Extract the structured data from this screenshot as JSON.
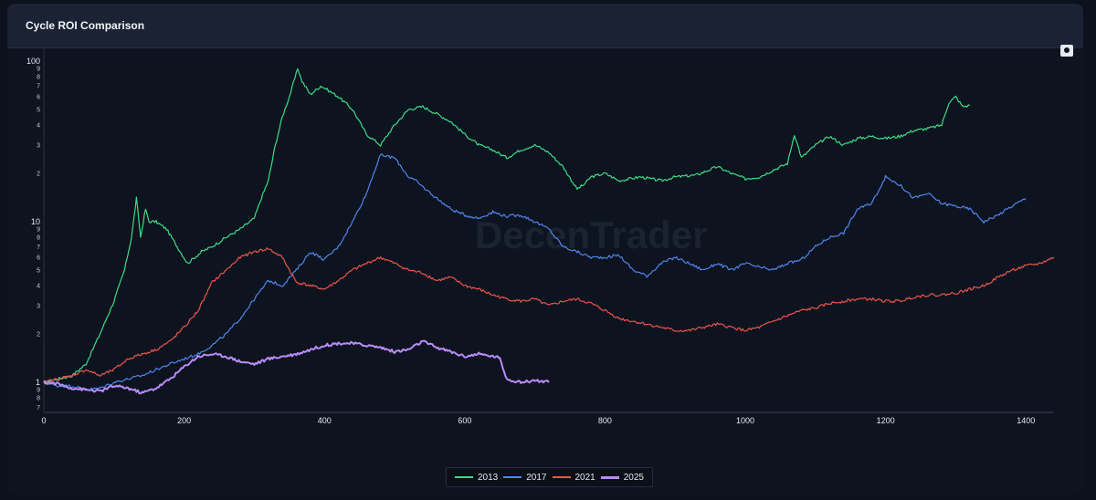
{
  "panel": {
    "title": "Cycle ROI Comparison"
  },
  "watermark": "DecenTrader",
  "toolbar": {
    "camera_icon": "camera-icon"
  },
  "chart_data": {
    "type": "line",
    "title": "Cycle ROI Comparison",
    "xlabel": "",
    "ylabel": "",
    "y_scale": "log",
    "xlim": [
      0,
      1440
    ],
    "ylim": [
      0.65,
      120
    ],
    "x_ticks": [
      0,
      200,
      400,
      600,
      800,
      1000,
      1200,
      1400
    ],
    "x_tick_labels": [
      "0",
      "200",
      "400",
      "600",
      "800",
      "1000",
      "1200",
      "1400"
    ],
    "y_major_ticks": [
      {
        "value": 1,
        "label": "1"
      },
      {
        "value": 10,
        "label": "10"
      },
      {
        "value": 100,
        "label": "100"
      }
    ],
    "y_minor_ticks": [
      {
        "value": 0.7,
        "label": "7"
      },
      {
        "value": 0.8,
        "label": "8"
      },
      {
        "value": 0.9,
        "label": "9"
      },
      {
        "value": 2,
        "label": "2"
      },
      {
        "value": 3,
        "label": "3"
      },
      {
        "value": 4,
        "label": "4"
      },
      {
        "value": 5,
        "label": "5"
      },
      {
        "value": 6,
        "label": "6"
      },
      {
        "value": 7,
        "label": "7"
      },
      {
        "value": 8,
        "label": "8"
      },
      {
        "value": 9,
        "label": "9"
      },
      {
        "value": 20,
        "label": "2"
      },
      {
        "value": 30,
        "label": "3"
      },
      {
        "value": 40,
        "label": "4"
      },
      {
        "value": 50,
        "label": "5"
      },
      {
        "value": 60,
        "label": "6"
      },
      {
        "value": 70,
        "label": "7"
      },
      {
        "value": 80,
        "label": "8"
      },
      {
        "value": 90,
        "label": "9"
      }
    ],
    "grid": false,
    "legend": "bottom-center",
    "series": [
      {
        "name": "2013",
        "color": "#3ddc84",
        "x": [
          0,
          20,
          40,
          60,
          80,
          100,
          115,
          125,
          132,
          138,
          145,
          150,
          160,
          175,
          190,
          205,
          215,
          225,
          240,
          260,
          280,
          300,
          310,
          320,
          330,
          340,
          350,
          362,
          368,
          380,
          395,
          400,
          420,
          440,
          460,
          480,
          500,
          520,
          540,
          560,
          580,
          600,
          620,
          640,
          660,
          680,
          700,
          720,
          740,
          760,
          770,
          780,
          800,
          820,
          850,
          880,
          900,
          930,
          960,
          980,
          1000,
          1020,
          1040,
          1060,
          1070,
          1080,
          1100,
          1120,
          1140,
          1160,
          1180,
          1200,
          1220,
          1240,
          1260,
          1280,
          1290,
          1300,
          1310,
          1320
        ],
        "y": [
          1.0,
          1.05,
          1.1,
          1.3,
          2.0,
          3.2,
          5.0,
          8.0,
          14.0,
          8.0,
          12.0,
          10.0,
          10.0,
          9.0,
          7.0,
          5.5,
          6.0,
          6.5,
          7.0,
          8.0,
          9.0,
          10.5,
          14.0,
          18.0,
          30.0,
          45.0,
          60.0,
          90.0,
          75.0,
          62.0,
          70.0,
          68.0,
          60.0,
          50.0,
          35.0,
          30.0,
          40.0,
          50.0,
          52.0,
          47.0,
          42.0,
          35.0,
          30.0,
          28.0,
          25.0,
          28.0,
          30.0,
          27.0,
          22.0,
          16.0,
          17.0,
          19.0,
          20.0,
          18.0,
          19.0,
          18.0,
          19.0,
          19.5,
          22.0,
          20.0,
          18.5,
          19.0,
          21.0,
          23.0,
          35.0,
          25.0,
          30.0,
          34.0,
          30.0,
          33.0,
          34.0,
          33.0,
          34.0,
          37.0,
          38.0,
          40.0,
          55.0,
          60.0,
          52.0,
          53.0
        ]
      },
      {
        "name": "2017",
        "color": "#4f86e8",
        "x": [
          0,
          20,
          40,
          60,
          80,
          100,
          120,
          140,
          160,
          180,
          200,
          220,
          240,
          260,
          280,
          300,
          320,
          340,
          360,
          380,
          400,
          420,
          440,
          460,
          470,
          480,
          500,
          520,
          530,
          540,
          560,
          580,
          600,
          620,
          640,
          660,
          680,
          700,
          720,
          740,
          760,
          780,
          800,
          820,
          840,
          860,
          880,
          900,
          920,
          940,
          960,
          980,
          1000,
          1020,
          1040,
          1060,
          1080,
          1100,
          1120,
          1140,
          1160,
          1180,
          1200,
          1220,
          1240,
          1260,
          1280,
          1300,
          1320,
          1330,
          1340,
          1360,
          1380,
          1400
        ],
        "y": [
          1.0,
          0.95,
          0.95,
          0.9,
          0.92,
          1.0,
          1.05,
          1.1,
          1.2,
          1.3,
          1.4,
          1.5,
          1.7,
          2.0,
          2.5,
          3.3,
          4.3,
          4.0,
          5.0,
          6.5,
          5.8,
          7.0,
          10.0,
          15.0,
          20.0,
          26.0,
          25.0,
          19.0,
          18.0,
          16.5,
          14.0,
          12.0,
          11.0,
          10.5,
          11.5,
          10.8,
          11.0,
          10.0,
          9.0,
          7.0,
          6.5,
          6.0,
          6.0,
          6.2,
          5.0,
          4.6,
          5.5,
          6.0,
          5.5,
          5.0,
          5.5,
          5.0,
          5.5,
          5.2,
          5.0,
          5.5,
          5.8,
          7.0,
          8.0,
          8.5,
          12.0,
          13.0,
          19.0,
          17.0,
          14.0,
          15.0,
          13.0,
          12.5,
          12.0,
          11.0,
          10.0,
          11.0,
          12.5,
          14.0
        ]
      },
      {
        "name": "2021",
        "color": "#e8564a",
        "x": [
          0,
          20,
          40,
          60,
          80,
          100,
          120,
          140,
          160,
          180,
          200,
          220,
          240,
          260,
          280,
          300,
          320,
          340,
          360,
          380,
          400,
          420,
          440,
          460,
          480,
          500,
          520,
          540,
          560,
          580,
          600,
          620,
          640,
          660,
          680,
          700,
          720,
          740,
          760,
          780,
          800,
          820,
          840,
          860,
          880,
          900,
          920,
          940,
          960,
          980,
          1000,
          1020,
          1040,
          1060,
          1080,
          1100,
          1120,
          1140,
          1160,
          1180,
          1200,
          1220,
          1240,
          1260,
          1280,
          1300,
          1320,
          1340,
          1360,
          1380,
          1400,
          1420,
          1440
        ],
        "y": [
          1.0,
          1.05,
          1.1,
          1.2,
          1.1,
          1.2,
          1.4,
          1.5,
          1.6,
          1.8,
          2.2,
          2.8,
          4.2,
          5.0,
          6.0,
          6.5,
          6.8,
          6.0,
          4.2,
          4.0,
          3.8,
          4.3,
          5.0,
          5.5,
          6.0,
          5.5,
          5.0,
          4.8,
          4.3,
          4.5,
          4.0,
          3.8,
          3.5,
          3.3,
          3.2,
          3.3,
          3.0,
          3.2,
          3.3,
          3.1,
          2.8,
          2.5,
          2.4,
          2.3,
          2.2,
          2.1,
          2.1,
          2.2,
          2.3,
          2.2,
          2.1,
          2.2,
          2.4,
          2.6,
          2.8,
          2.9,
          3.1,
          3.2,
          3.3,
          3.3,
          3.2,
          3.2,
          3.4,
          3.5,
          3.5,
          3.6,
          3.8,
          4.0,
          4.5,
          5.0,
          5.3,
          5.5,
          6.0
        ]
      },
      {
        "name": "2025",
        "color": "#b98cf7",
        "x": [
          0,
          20,
          40,
          60,
          80,
          100,
          120,
          140,
          160,
          180,
          200,
          210,
          220,
          240,
          260,
          280,
          300,
          320,
          340,
          360,
          380,
          400,
          420,
          440,
          460,
          480,
          500,
          520,
          540,
          560,
          580,
          600,
          620,
          640,
          645,
          650,
          660,
          680,
          700,
          720
        ],
        "y": [
          1.0,
          0.98,
          0.92,
          0.9,
          0.88,
          0.95,
          0.92,
          0.86,
          0.92,
          1.05,
          1.25,
          1.35,
          1.45,
          1.5,
          1.45,
          1.35,
          1.3,
          1.4,
          1.45,
          1.5,
          1.6,
          1.7,
          1.75,
          1.75,
          1.7,
          1.65,
          1.55,
          1.6,
          1.8,
          1.65,
          1.55,
          1.45,
          1.5,
          1.45,
          1.45,
          1.4,
          1.05,
          1.0,
          1.03,
          1.0
        ]
      }
    ]
  }
}
